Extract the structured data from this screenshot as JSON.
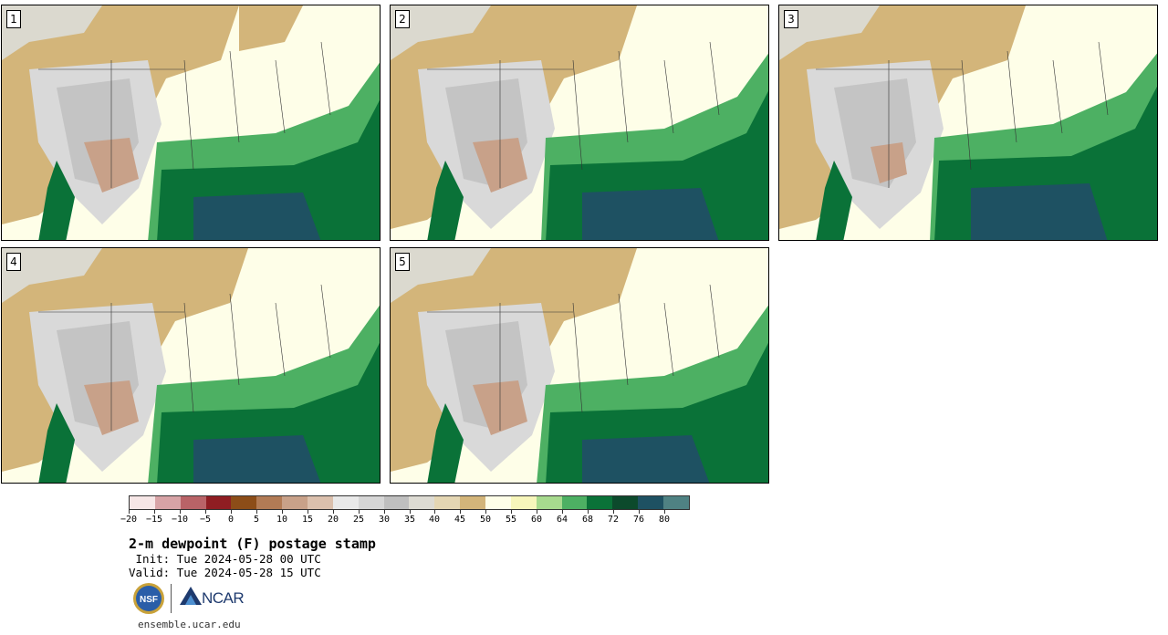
{
  "panels": [
    {
      "label": "1"
    },
    {
      "label": "2"
    },
    {
      "label": "3"
    },
    {
      "label": "4"
    },
    {
      "label": "5"
    }
  ],
  "colorbar": {
    "colors": [
      "#f6e6e6",
      "#d7a3a6",
      "#b96367",
      "#8f1d22",
      "#8c4d18",
      "#b27b55",
      "#c8a189",
      "#dbc0ad",
      "#e9e9e9",
      "#d6d6d6",
      "#bfbfbf",
      "#dddbd3",
      "#e4d6b3",
      "#d3b57a",
      "#fefee8",
      "#f7f6bb",
      "#a7da8e",
      "#4db063",
      "#0a7238",
      "#0c4a2c",
      "#1e5162",
      "#4f8283"
    ],
    "tick_labels": [
      "−20",
      "−15",
      "−10",
      "−5",
      "0",
      "5",
      "10",
      "15",
      "20",
      "25",
      "30",
      "35",
      "40",
      "45",
      "50",
      "55",
      "60",
      "64",
      "68",
      "72",
      "76",
      "80"
    ]
  },
  "title": "2-m dewpoint (F) postage stamp",
  "init": " Init: Tue 2024-05-28 00 UTC",
  "valid": "Valid: Tue 2024-05-28 15 UTC",
  "logos": {
    "nsf_label": "NSF",
    "ncar_label": "NCAR"
  },
  "footer_url": "ensemble.ucar.edu"
}
